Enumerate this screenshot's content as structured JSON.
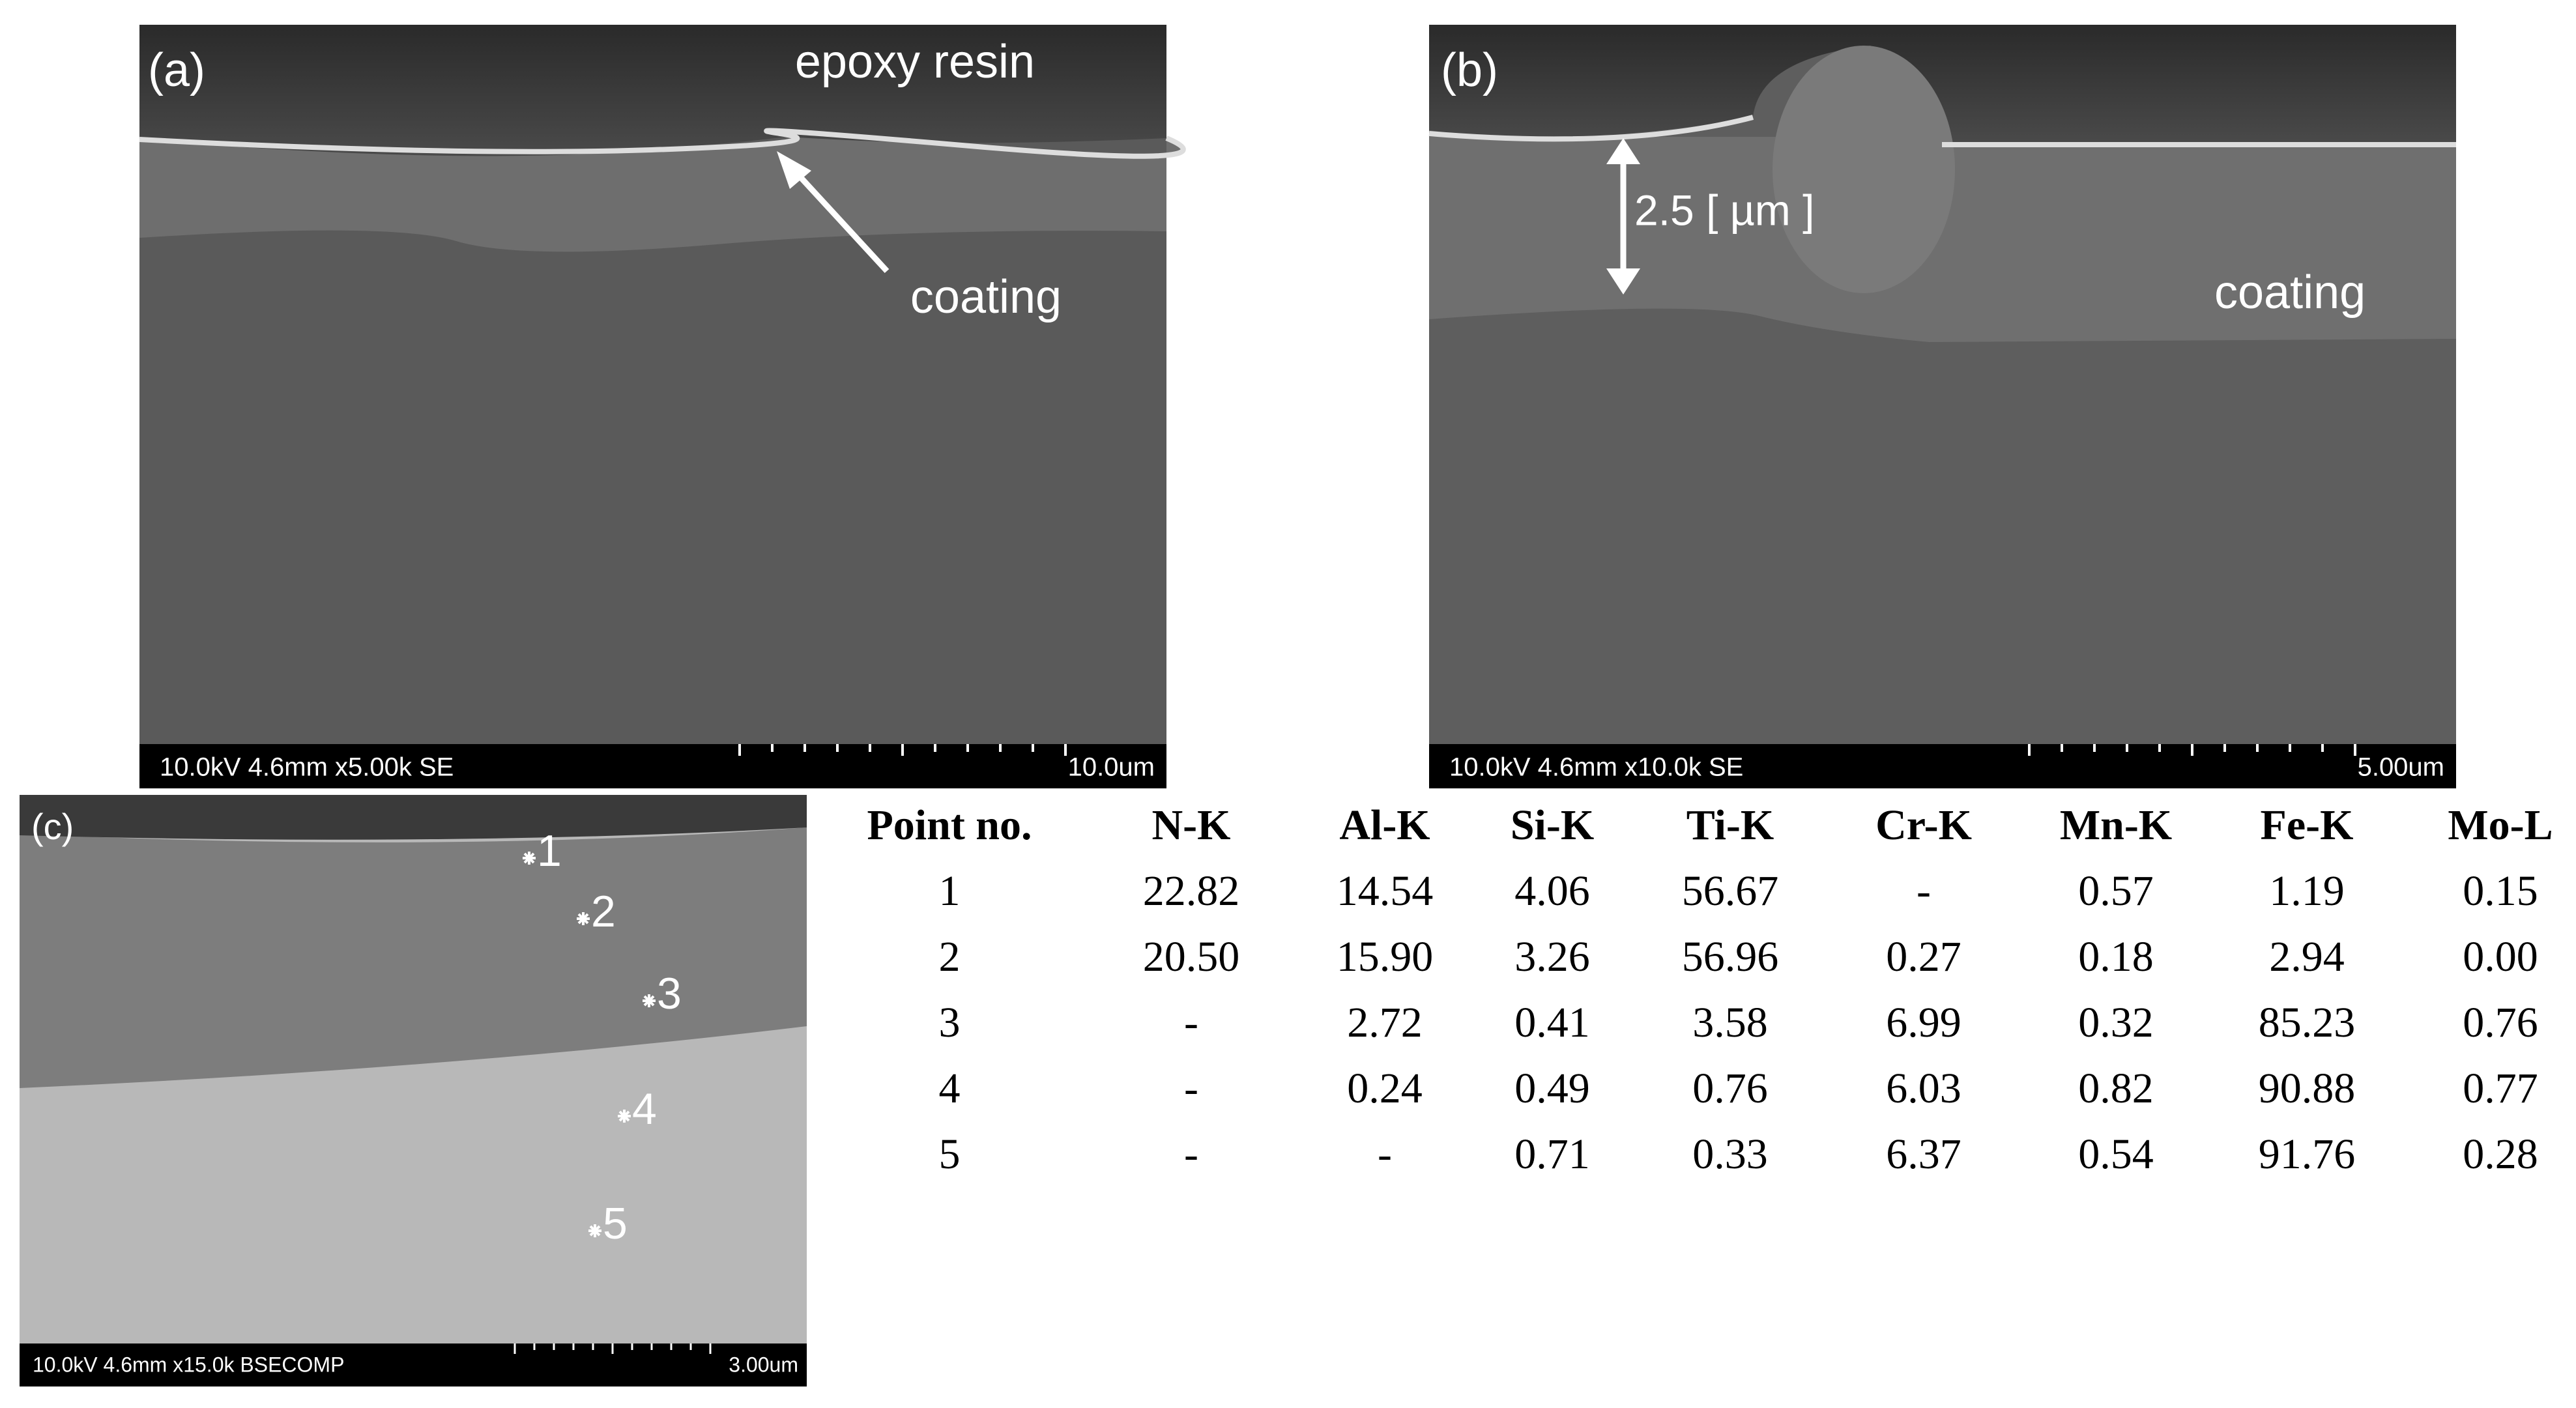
{
  "panels": [
    {
      "label": "(a)",
      "annotations": [
        "epoxy resin",
        "coating"
      ],
      "info": "10.0kV 4.6mm x5.00k SE",
      "scale": "10.0um"
    },
    {
      "label": "(b)",
      "annotations": [
        "2.5 [ µm ]",
        "coating"
      ],
      "info": "10.0kV 4.6mm x10.0k SE",
      "scale": "5.00um"
    },
    {
      "label": "(c)",
      "points": [
        "1",
        "2",
        "3",
        "4",
        "5"
      ],
      "info": "10.0kV 4.6mm x15.0k BSECOMP",
      "scale": "3.00um"
    }
  ],
  "table": {
    "header": [
      "Point no.",
      "N-K",
      "Al-K",
      "Si-K",
      "Ti-K",
      "Cr-K",
      "Mn-K",
      "Fe-K",
      "Mo-L"
    ],
    "rows": [
      [
        "1",
        "22.82",
        "14.54",
        "4.06",
        "56.67",
        "-",
        "0.57",
        "1.19",
        "0.15"
      ],
      [
        "2",
        "20.50",
        "15.90",
        "3.26",
        "56.96",
        "0.27",
        "0.18",
        "2.94",
        "0.00"
      ],
      [
        "3",
        "-",
        "2.72",
        "0.41",
        "3.58",
        "6.99",
        "0.32",
        "85.23",
        "0.76"
      ],
      [
        "4",
        "-",
        "0.24",
        "0.49",
        "0.76",
        "6.03",
        "0.82",
        "90.88",
        "0.77"
      ],
      [
        "5",
        "-",
        "-",
        "0.71",
        "0.33",
        "6.37",
        "0.54",
        "91.76",
        "0.28"
      ]
    ]
  }
}
